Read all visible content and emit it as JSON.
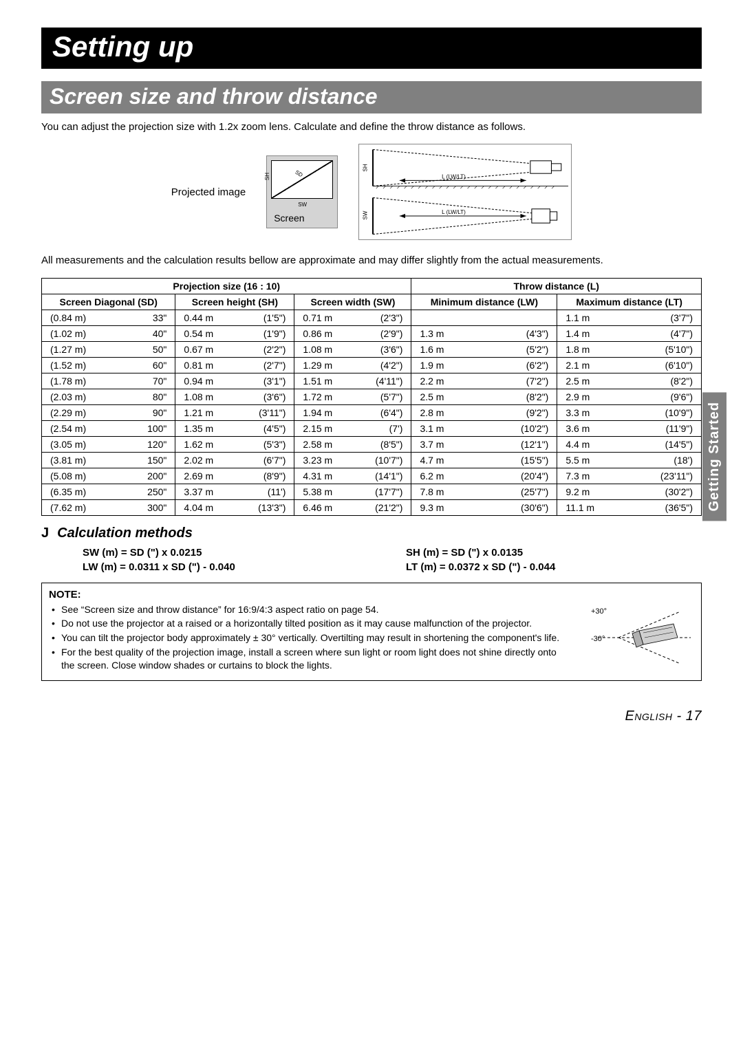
{
  "title": "Setting up",
  "section": "Screen size and throw distance",
  "intro": "You can adjust the projection size with 1.2x zoom lens. Calculate and define the throw distance as follows.",
  "projected_label": "Projected image",
  "screen_label": "Screen",
  "diagram_labels": {
    "sd": "SD",
    "sh": "SH",
    "sw": "SW",
    "l": "L (LW/LT)"
  },
  "approx_note": "All measurements and the calculation results bellow are approximate and may differ slightly from the actual measurements.",
  "side_tab": "Getting Started",
  "table": {
    "group_headers": [
      "Projection size (16 : 10)",
      "Throw distance (L)"
    ],
    "columns": [
      "Screen Diagonal (SD)",
      "Screen height (SH)",
      "Screen width (SW)",
      "Minimum distance (LW)",
      "Maximum distance (LT)"
    ],
    "rows": [
      {
        "sd_m": "(0.84 m)",
        "sd_in": "33\"",
        "sh_m": "0.44 m",
        "sh_ft": "(1'5\")",
        "sw_m": "0.71 m",
        "sw_ft": "(2'3\")",
        "lw_m": "",
        "lw_ft": "",
        "lt_m": "1.1 m",
        "lt_ft": "(3'7\")"
      },
      {
        "sd_m": "(1.02 m)",
        "sd_in": "40\"",
        "sh_m": "0.54 m",
        "sh_ft": "(1'9\")",
        "sw_m": "0.86 m",
        "sw_ft": "(2'9\")",
        "lw_m": "1.3 m",
        "lw_ft": "(4'3\")",
        "lt_m": "1.4 m",
        "lt_ft": "(4'7\")"
      },
      {
        "sd_m": "(1.27 m)",
        "sd_in": "50\"",
        "sh_m": "0.67 m",
        "sh_ft": "(2'2\")",
        "sw_m": "1.08 m",
        "sw_ft": "(3'6\")",
        "lw_m": "1.6 m",
        "lw_ft": "(5'2\")",
        "lt_m": "1.8 m",
        "lt_ft": "(5'10\")"
      },
      {
        "sd_m": "(1.52 m)",
        "sd_in": "60\"",
        "sh_m": "0.81 m",
        "sh_ft": "(2'7\")",
        "sw_m": "1.29 m",
        "sw_ft": "(4'2\")",
        "lw_m": "1.9 m",
        "lw_ft": "(6'2\")",
        "lt_m": "2.1 m",
        "lt_ft": "(6'10\")"
      },
      {
        "sd_m": "(1.78 m)",
        "sd_in": "70\"",
        "sh_m": "0.94 m",
        "sh_ft": "(3'1\")",
        "sw_m": "1.51 m",
        "sw_ft": "(4'11\")",
        "lw_m": "2.2 m",
        "lw_ft": "(7'2\")",
        "lt_m": "2.5 m",
        "lt_ft": "(8'2\")"
      },
      {
        "sd_m": "(2.03 m)",
        "sd_in": "80\"",
        "sh_m": "1.08 m",
        "sh_ft": "(3'6\")",
        "sw_m": "1.72 m",
        "sw_ft": "(5'7\")",
        "lw_m": "2.5 m",
        "lw_ft": "(8'2\")",
        "lt_m": "2.9 m",
        "lt_ft": "(9'6\")"
      },
      {
        "sd_m": "(2.29 m)",
        "sd_in": "90\"",
        "sh_m": "1.21 m",
        "sh_ft": "(3'11\")",
        "sw_m": "1.94 m",
        "sw_ft": "(6'4\")",
        "lw_m": "2.8 m",
        "lw_ft": "(9'2\")",
        "lt_m": "3.3 m",
        "lt_ft": "(10'9\")"
      },
      {
        "sd_m": "(2.54 m)",
        "sd_in": "100\"",
        "sh_m": "1.35 m",
        "sh_ft": "(4'5\")",
        "sw_m": "2.15 m",
        "sw_ft": "(7')",
        "lw_m": "3.1 m",
        "lw_ft": "(10'2\")",
        "lt_m": "3.6 m",
        "lt_ft": "(11'9\")"
      },
      {
        "sd_m": "(3.05 m)",
        "sd_in": "120\"",
        "sh_m": "1.62 m",
        "sh_ft": "(5'3\")",
        "sw_m": "2.58 m",
        "sw_ft": "(8'5\")",
        "lw_m": "3.7 m",
        "lw_ft": "(12'1\")",
        "lt_m": "4.4 m",
        "lt_ft": "(14'5\")"
      },
      {
        "sd_m": "(3.81 m)",
        "sd_in": "150\"",
        "sh_m": "2.02 m",
        "sh_ft": "(6'7\")",
        "sw_m": "3.23 m",
        "sw_ft": "(10'7\")",
        "lw_m": "4.7 m",
        "lw_ft": "(15'5\")",
        "lt_m": "5.5 m",
        "lt_ft": "(18')"
      },
      {
        "sd_m": "(5.08 m)",
        "sd_in": "200\"",
        "sh_m": "2.69 m",
        "sh_ft": "(8'9\")",
        "sw_m": "4.31 m",
        "sw_ft": "(14'1\")",
        "lw_m": "6.2 m",
        "lw_ft": "(20'4\")",
        "lt_m": "7.3 m",
        "lt_ft": "(23'11\")"
      },
      {
        "sd_m": "(6.35 m)",
        "sd_in": "250\"",
        "sh_m": "3.37 m",
        "sh_ft": "(11')",
        "sw_m": "5.38 m",
        "sw_ft": "(17'7\")",
        "lw_m": "7.8 m",
        "lw_ft": "(25'7\")",
        "lt_m": "9.2 m",
        "lt_ft": "(30'2\")"
      },
      {
        "sd_m": "(7.62 m)",
        "sd_in": "300\"",
        "sh_m": "4.04 m",
        "sh_ft": "(13'3\")",
        "sw_m": "6.46 m",
        "sw_ft": "(21'2\")",
        "lw_m": "9.3 m",
        "lw_ft": "(30'6\")",
        "lt_m": "11.1 m",
        "lt_ft": "(36'5\")"
      }
    ]
  },
  "calc": {
    "heading_j": "J",
    "heading": "Calculation methods",
    "sw": "SW (m) = SD (\") x 0.0215",
    "sh": "SH (m) = SD (\") x 0.0135",
    "lw": "LW (m) = 0.0311 x SD (\") - 0.040",
    "lt": "LT (m) = 0.0372 x SD (\") - 0.044"
  },
  "note": {
    "label": "NOTE:",
    "items": [
      "See “Screen size and throw distance” for 16:9/4:3 aspect ratio on page 54.",
      "Do not use the projector at a raised or a horizontally tilted position as it may cause malfunction of the projector.",
      "You can tilt the projector body approximately ± 30° vertically. Overtilting may result in shortening the component's life.",
      "For the best quality of the projection image, install a screen where sun light or room light does not shine directly onto the screen. Close window shades or curtains to block the lights."
    ],
    "plus30": "+30°",
    "minus30": "-30°"
  },
  "footer": {
    "lang": "English",
    "sep": " - ",
    "page": "17"
  },
  "colors": {
    "title_bg": "#000000",
    "section_bg": "#808080",
    "diagram_bg": "#d4d4d4",
    "border": "#000000"
  }
}
